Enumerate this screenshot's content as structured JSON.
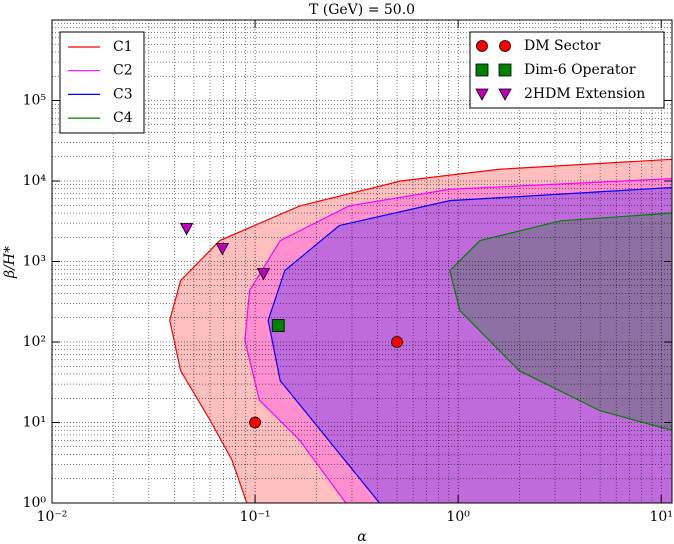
{
  "chart_data": {
    "type": "contour",
    "title": "T (GeV) = 50.0",
    "x_label": "α",
    "y_label": "β/H*",
    "log_x": true,
    "log_y": true,
    "grid": true,
    "minor_grid": true,
    "fill_opacity": 0.25,
    "xlim": [
      0.01,
      11.3
    ],
    "ylim": [
      1,
      1000000
    ],
    "xticks": [
      {
        "value": 0.01,
        "label": "10⁻²"
      },
      {
        "value": 0.1,
        "label": "10⁻¹"
      },
      {
        "value": 1,
        "label": "10⁰"
      },
      {
        "value": 10,
        "label": "10¹"
      }
    ],
    "yticks": [
      {
        "value": 1,
        "label": "10⁰"
      },
      {
        "value": 10,
        "label": "10¹"
      },
      {
        "value": 100,
        "label": "10²"
      },
      {
        "value": 1000,
        "label": "10³"
      },
      {
        "value": 10000,
        "label": "10⁴"
      },
      {
        "value": 100000,
        "label": "10⁵"
      }
    ],
    "legend": "upper left",
    "marker_legend": "upper right",
    "series": [
      {
        "name": "C1",
        "color": "#ff0000",
        "x": [
          0.091,
          0.077,
          0.06,
          0.043,
          0.038,
          0.043,
          0.067,
          0.166,
          0.52,
          1.6,
          11.3
        ],
        "values": [
          1,
          3.4,
          10.7,
          44,
          186,
          580,
          1820,
          4900,
          10000,
          14000,
          18600
        ]
      },
      {
        "name": "C2",
        "color": "#ff00ff",
        "x": [
          0.28,
          0.166,
          0.105,
          0.089,
          0.094,
          0.133,
          0.29,
          0.91,
          11.3
        ],
        "values": [
          1,
          6,
          19,
          105,
          437,
          1820,
          4900,
          7900,
          10700
        ]
      },
      {
        "name": "C3",
        "color": "#0000ff",
        "x": [
          0.41,
          0.21,
          0.133,
          0.116,
          0.14,
          0.26,
          0.91,
          11.3
        ],
        "values": [
          1,
          8,
          33,
          186,
          770,
          2800,
          5700,
          8300
        ]
      },
      {
        "name": "C4",
        "color": "#008000",
        "x": [
          11.3,
          5,
          2,
          1.02,
          0.91,
          1.28,
          3.2,
          11.3
        ],
        "values": [
          8,
          14,
          44,
          245,
          770,
          1820,
          3200,
          4000
        ]
      }
    ],
    "markers": [
      {
        "name": "DM Sector",
        "color": "#ff0000",
        "marker": "circle",
        "x": [
          0.1,
          0.5
        ],
        "values": [
          10,
          100
        ]
      },
      {
        "name": "Dim-6 Operator",
        "color": "#008000",
        "marker": "square",
        "x": [
          0.13
        ],
        "values": [
          160
        ]
      },
      {
        "name": "2HDM Extension",
        "color": "#bf00bf",
        "marker": "triangle",
        "x": [
          0.046,
          0.069,
          0.11
        ],
        "values": [
          2570,
          1450,
          710
        ]
      }
    ]
  }
}
